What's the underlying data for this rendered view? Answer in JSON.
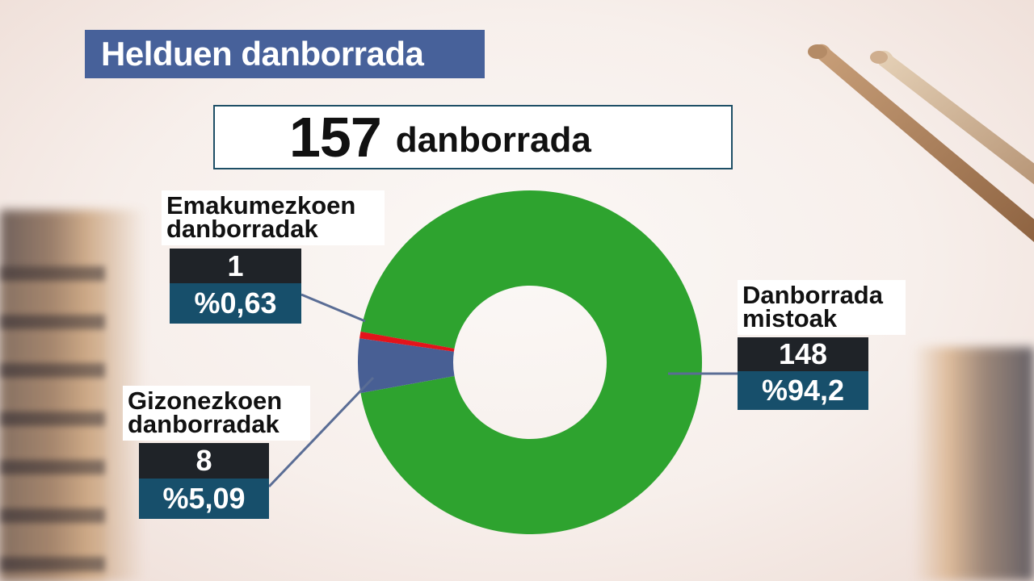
{
  "title": "Helduen danborrada",
  "total": {
    "number": "157",
    "label": "danborrada"
  },
  "chart_data": {
    "type": "pie",
    "donut": true,
    "total": 157,
    "slices": [
      {
        "name": "Danborrada mistoak",
        "line1": "Danborrada",
        "line2": "mistoak",
        "value": 148,
        "value_label": "148",
        "percent_label": "%94,2",
        "color": "#2ea32f"
      },
      {
        "name": "Emakumezkoen danborradak",
        "line1": "Emakumezkoen",
        "line2": "danborradak",
        "value": 1,
        "value_label": "1",
        "percent_label": "%0,63",
        "color": "#e3141b"
      },
      {
        "name": "Gizonezkoen danborradak",
        "line1": "Gizonezkoen",
        "line2": "danborradak",
        "value": 8,
        "value_label": "8",
        "percent_label": "%5,09",
        "color": "#485f94"
      }
    ]
  },
  "colors": {
    "title_bg": "#47619a",
    "number_bg": "#1f2328",
    "percent_bg": "#174f6b",
    "leader_line": "#5a6d95"
  }
}
